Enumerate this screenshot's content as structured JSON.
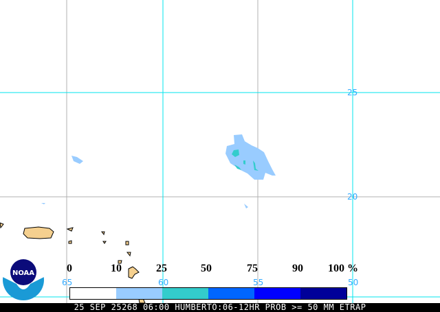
{
  "map": {
    "lat_labels": [
      "25",
      "20"
    ],
    "lon_labels": [
      "65",
      "60",
      "55",
      "50"
    ]
  },
  "legend": {
    "ticks": [
      "0",
      "10",
      "25",
      "50",
      "75",
      "90",
      "100 %"
    ],
    "colors": [
      "#ffffff",
      "#99ccff",
      "#33cccc",
      "#0066ff",
      "#0000ff",
      "#000099"
    ]
  },
  "logo": {
    "text": "NOAA"
  },
  "footer": {
    "text": "25 SEP 25268 06:00 HUMBERTO:06-12HR PROB >= 50 MM ETRAP"
  },
  "colors": {
    "grid_major": "#00e5ee",
    "grid_minor": "#b0b0b0",
    "land": "#f5d08f"
  }
}
